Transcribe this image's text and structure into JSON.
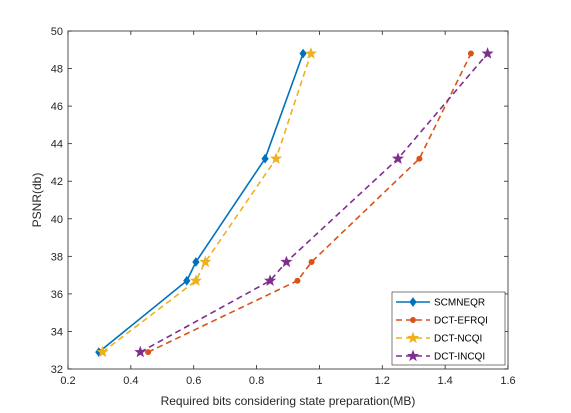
{
  "chart_data": {
    "type": "line",
    "xlabel": "Required bits considering state preparation(MB)",
    "ylabel": "PSNR(db)",
    "xlim": [
      0.2,
      1.6
    ],
    "ylim": [
      32,
      50
    ],
    "xticks": [
      0.2,
      0.4,
      0.6,
      0.8,
      1,
      1.2,
      1.4,
      1.6
    ],
    "yticks": [
      32,
      34,
      36,
      38,
      40,
      42,
      44,
      46,
      48,
      50
    ],
    "grid": false,
    "legend_position": "bottom-right",
    "series": [
      {
        "name": "SCMNEQR",
        "color": "#0072BD",
        "line_style": "solid",
        "marker": "diamond",
        "x": [
          0.298,
          0.578,
          0.607,
          0.827,
          0.948
        ],
        "y": [
          32.9,
          36.7,
          37.7,
          43.2,
          48.8
        ]
      },
      {
        "name": "DCT-EFRQI",
        "color": "#D95319",
        "line_style": "dashed",
        "marker": "dot",
        "x": [
          0.455,
          0.93,
          0.975,
          1.318,
          1.482
        ],
        "y": [
          32.9,
          36.7,
          37.7,
          43.2,
          48.8
        ]
      },
      {
        "name": "DCT-NCQI",
        "color": "#EDB120",
        "line_style": "dashed",
        "marker": "star",
        "x": [
          0.31,
          0.607,
          0.637,
          0.862,
          0.973
        ],
        "y": [
          32.9,
          36.7,
          37.7,
          43.2,
          48.8
        ]
      },
      {
        "name": "DCT-INCQI",
        "color": "#7E2F8E",
        "line_style": "dashed",
        "marker": "star",
        "x": [
          0.43,
          0.843,
          0.895,
          1.25,
          1.535
        ],
        "y": [
          32.9,
          36.7,
          37.7,
          43.2,
          48.8
        ]
      }
    ]
  }
}
